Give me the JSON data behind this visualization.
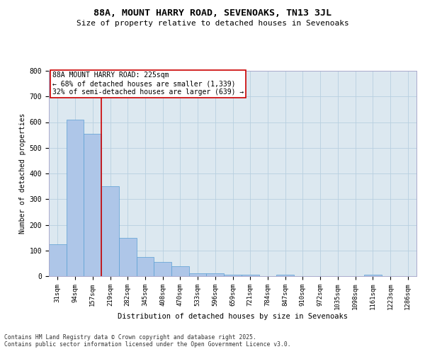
{
  "title1": "88A, MOUNT HARRY ROAD, SEVENOAKS, TN13 3JL",
  "title2": "Size of property relative to detached houses in Sevenoaks",
  "xlabel": "Distribution of detached houses by size in Sevenoaks",
  "ylabel": "Number of detached properties",
  "categories": [
    "31sqm",
    "94sqm",
    "157sqm",
    "219sqm",
    "282sqm",
    "345sqm",
    "408sqm",
    "470sqm",
    "533sqm",
    "596sqm",
    "659sqm",
    "721sqm",
    "784sqm",
    "847sqm",
    "910sqm",
    "972sqm",
    "1035sqm",
    "1098sqm",
    "1161sqm",
    "1223sqm",
    "1286sqm"
  ],
  "values": [
    125,
    610,
    555,
    350,
    150,
    75,
    55,
    40,
    12,
    12,
    5,
    5,
    0,
    5,
    0,
    0,
    0,
    0,
    5,
    0,
    0
  ],
  "bar_color": "#aec6e8",
  "bar_edge_color": "#5a9fd4",
  "red_line_index": 3,
  "annotation_text": "88A MOUNT HARRY ROAD: 225sqm\n← 68% of detached houses are smaller (1,339)\n32% of semi-detached houses are larger (639) →",
  "annotation_box_color": "#ffffff",
  "annotation_box_edge": "#cc0000",
  "red_line_color": "#cc0000",
  "grid_color": "#b8cfe0",
  "bg_color": "#dce8f0",
  "footer1": "Contains HM Land Registry data © Crown copyright and database right 2025.",
  "footer2": "Contains public sector information licensed under the Open Government Licence v3.0.",
  "ylim": [
    0,
    800
  ],
  "yticks": [
    0,
    100,
    200,
    300,
    400,
    500,
    600,
    700,
    800
  ]
}
